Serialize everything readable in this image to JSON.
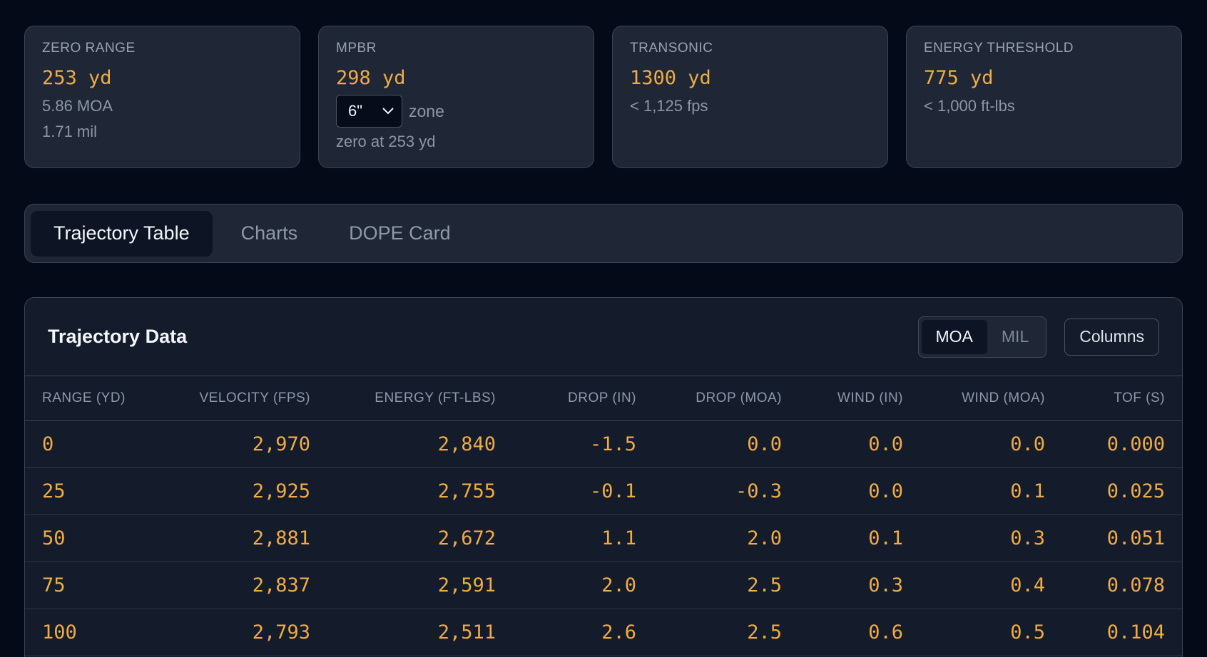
{
  "cards": [
    {
      "label": "ZERO RANGE",
      "value": "253  yd",
      "sub1": "5.86 MOA",
      "sub2": "1.71 mil"
    },
    {
      "label": "MPBR",
      "value": "298  yd",
      "zone_select": "6\"",
      "zone_text": "zone",
      "sub1": "zero at 253 yd"
    },
    {
      "label": "TRANSONIC",
      "value": "1300  yd",
      "sub1": "< 1,125 fps"
    },
    {
      "label": "ENERGY THRESHOLD",
      "value": "775  yd",
      "sub1": "< 1,000 ft-lbs"
    }
  ],
  "tabs": [
    {
      "label": "Trajectory Table",
      "active": true
    },
    {
      "label": "Charts",
      "active": false
    },
    {
      "label": "DOPE Card",
      "active": false
    }
  ],
  "panel": {
    "title": "Trajectory Data",
    "units": [
      "MOA",
      "MIL"
    ],
    "active_unit": "MOA",
    "columns_button": "Columns"
  },
  "table": {
    "headers": [
      "RANGE (YD)",
      "VELOCITY (FPS)",
      "ENERGY (FT-LBS)",
      "DROP (IN)",
      "DROP (MOA)",
      "WIND (IN)",
      "WIND (MOA)",
      "TOF (S)"
    ],
    "rows": [
      [
        "0",
        "2,970",
        "2,840",
        "-1.5",
        "0.0",
        "0.0",
        "0.0",
        "0.000"
      ],
      [
        "25",
        "2,925",
        "2,755",
        "-0.1",
        "-0.3",
        "0.0",
        "0.1",
        "0.025"
      ],
      [
        "50",
        "2,881",
        "2,672",
        "1.1",
        "2.0",
        "0.1",
        "0.3",
        "0.051"
      ],
      [
        "75",
        "2,837",
        "2,591",
        "2.0",
        "2.5",
        "0.3",
        "0.4",
        "0.078"
      ],
      [
        "100",
        "2,793",
        "2,511",
        "2.6",
        "2.5",
        "0.6",
        "0.5",
        "0.104"
      ]
    ]
  },
  "colors": {
    "background": "#050a19",
    "card": "#1f2736",
    "accent_value": "#f0ab43",
    "muted_text": "#8c96a6"
  }
}
